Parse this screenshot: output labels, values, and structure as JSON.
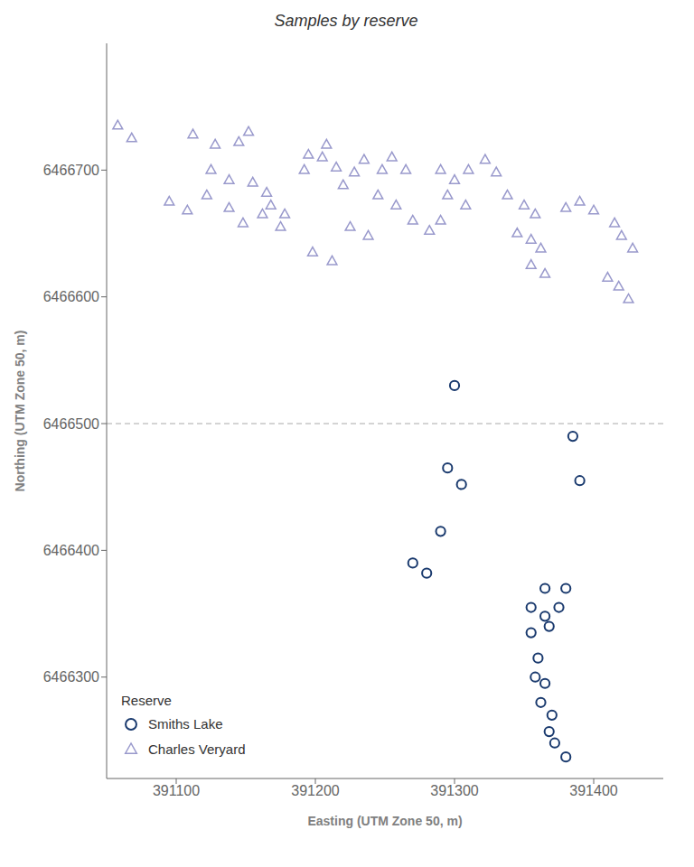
{
  "chart_data": {
    "type": "scatter",
    "title": "Samples by reserve",
    "xlabel": "Easting (UTM Zone 50, m)",
    "ylabel": "Northing (UTM Zone 50, m)",
    "xlim": [
      391050,
      391450
    ],
    "ylim": [
      6466220,
      6466800
    ],
    "xticks": [
      391100,
      391200,
      391300,
      391400
    ],
    "yticks": [
      6466300,
      6466400,
      6466500,
      6466600,
      6466700
    ],
    "grid": false,
    "legend": "lower left",
    "legend_title": "Reserve",
    "hlines": [
      {
        "y": 6466500,
        "color": "#aaaaaa",
        "line_style": "dashed"
      }
    ],
    "series": [
      {
        "name": "Smiths Lake",
        "color": "#1a3a6e",
        "marker": "circle",
        "x": [
          391300,
          391385,
          391295,
          391305,
          391390,
          391290,
          391270,
          391280,
          391365,
          391380,
          391355,
          391365,
          391375,
          391355,
          391368,
          391360,
          391358,
          391365,
          391362,
          391370,
          391368,
          391372,
          391380
        ],
        "y": [
          6466530,
          6466490,
          6466465,
          6466452,
          6466455,
          6466415,
          6466390,
          6466382,
          6466370,
          6466370,
          6466355,
          6466348,
          6466355,
          6466335,
          6466340,
          6466315,
          6466300,
          6466295,
          6466280,
          6466270,
          6466257,
          6466248,
          6466237
        ]
      },
      {
        "name": "Charles Veryard",
        "color": "#9999cc",
        "marker": "triangle",
        "x": [
          391058,
          391068,
          391112,
          391128,
          391145,
          391152,
          391125,
          391138,
          391095,
          391108,
          391122,
          391138,
          391155,
          391165,
          391148,
          391162,
          391175,
          391168,
          391178,
          391192,
          391205,
          391215,
          391195,
          391208,
          391228,
          391235,
          391248,
          391220,
          391255,
          391265,
          391245,
          391258,
          391225,
          391238,
          391198,
          391212,
          391290,
          391300,
          391310,
          391322,
          391330,
          391295,
          391308,
          391270,
          391282,
          391290,
          391338,
          391350,
          391358,
          391345,
          391355,
          391362,
          391355,
          391365,
          391380,
          391390,
          391400,
          391415,
          391420,
          391428,
          391410,
          391418,
          391425
        ],
        "y": [
          6466735,
          6466725,
          6466728,
          6466720,
          6466722,
          6466730,
          6466700,
          6466692,
          6466675,
          6466668,
          6466680,
          6466670,
          6466690,
          6466682,
          6466658,
          6466665,
          6466655,
          6466672,
          6466665,
          6466700,
          6466710,
          6466702,
          6466712,
          6466720,
          6466698,
          6466708,
          6466700,
          6466688,
          6466710,
          6466700,
          6466680,
          6466672,
          6466655,
          6466648,
          6466635,
          6466628,
          6466700,
          6466692,
          6466700,
          6466708,
          6466698,
          6466680,
          6466672,
          6466660,
          6466652,
          6466660,
          6466680,
          6466672,
          6466665,
          6466650,
          6466645,
          6466638,
          6466625,
          6466618,
          6466670,
          6466675,
          6466668,
          6466658,
          6466648,
          6466638,
          6466615,
          6466608,
          6466598
        ]
      }
    ]
  }
}
